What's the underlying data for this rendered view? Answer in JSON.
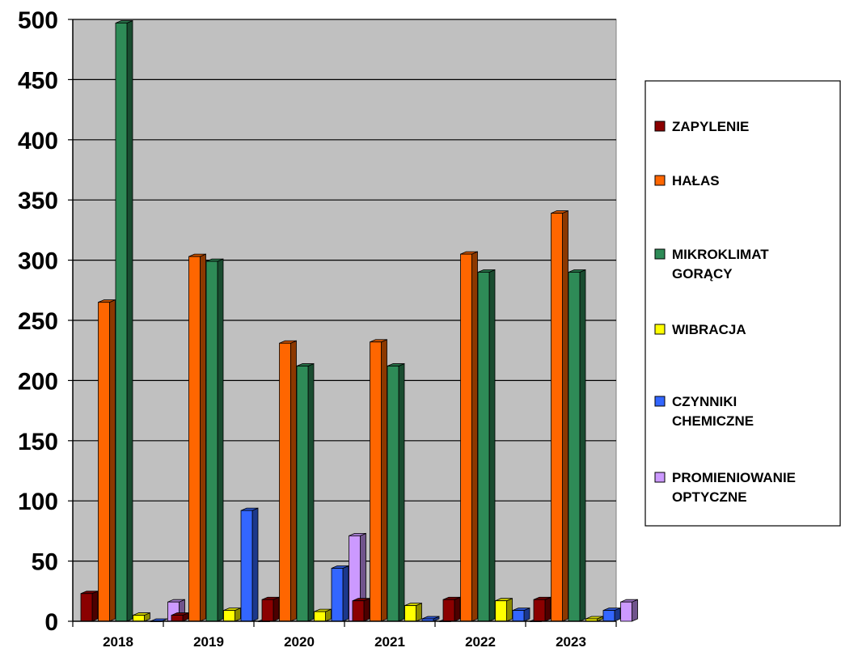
{
  "chart_data": {
    "type": "bar",
    "categories": [
      "2018",
      "2019",
      "2020",
      "2021",
      "2022",
      "2023"
    ],
    "series": [
      {
        "name": "ZAPYLENIE",
        "name_lines": [
          "ZAPYLENIE"
        ],
        "color": "#8b0000",
        "values": [
          23,
          5,
          18,
          17,
          18,
          18
        ]
      },
      {
        "name": "HAŁAS",
        "name_lines": [
          "HAŁAS"
        ],
        "color": "#ff6600",
        "values": [
          265,
          303,
          231,
          232,
          305,
          339
        ]
      },
      {
        "name": "MIKROKLIMAT GORĄCY",
        "name_lines": [
          "MIKROKLIMAT",
          "GORĄCY"
        ],
        "color": "#2e8b57",
        "values": [
          497,
          299,
          212,
          212,
          290,
          290
        ]
      },
      {
        "name": "WIBRACJA",
        "name_lines": [
          "WIBRACJA"
        ],
        "color": "#ffff00",
        "values": [
          5,
          9,
          8,
          13,
          17,
          2
        ]
      },
      {
        "name": "CZYNNIKI CHEMICZNE",
        "name_lines": [
          "CZYNNIKI",
          "CHEMICZNE"
        ],
        "color": "#3366ff",
        "values": [
          0,
          92,
          44,
          2,
          9,
          9
        ]
      },
      {
        "name": "PROMIENIOWANIE OPTYCZNE",
        "name_lines": [
          "PROMIENIOWANIE",
          "OPTYCZNE"
        ],
        "color": "#cc99ff",
        "values": [
          16,
          0,
          71,
          0,
          0,
          16
        ]
      }
    ],
    "y_ticks": [
      "0",
      "50",
      "100",
      "150",
      "200",
      "250",
      "300",
      "350",
      "400",
      "450",
      "500"
    ],
    "ylim": [
      0,
      500
    ],
    "grid": true,
    "legend_position": "right",
    "plot_background": "#c0c0c0"
  }
}
